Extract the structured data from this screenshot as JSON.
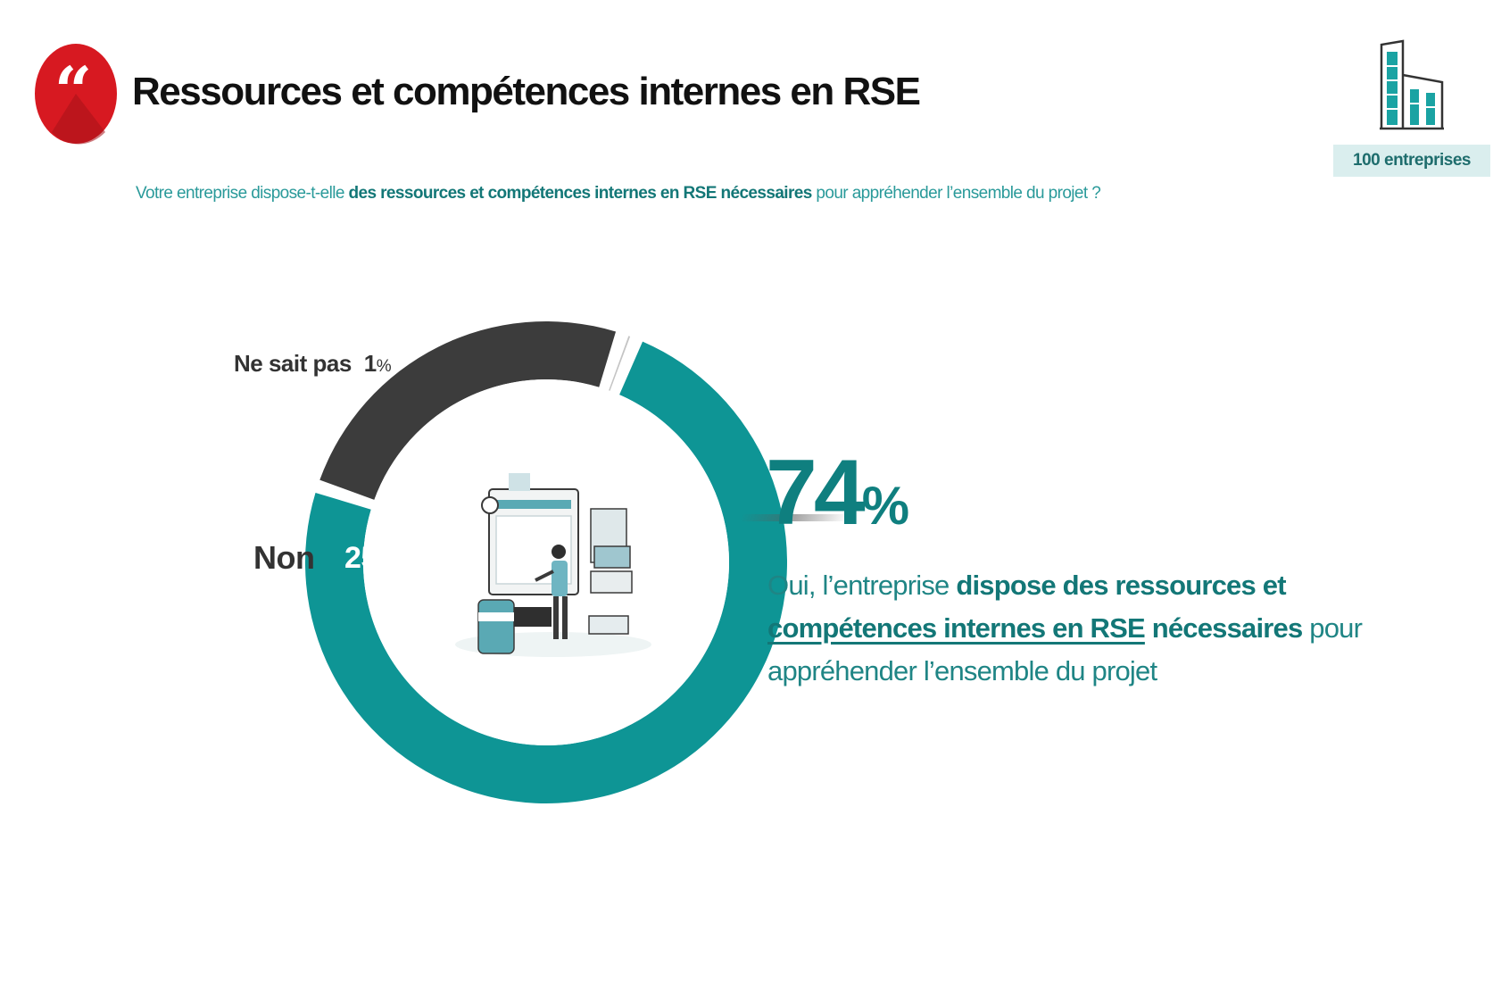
{
  "header": {
    "title": "Ressources et compétences internes en RSE",
    "badge_glyph": "“",
    "sample": "100 entreprises"
  },
  "question": {
    "prefix": "Votre entreprise dispose-t-elle ",
    "bold": "des ressources et compétences internes en RSE nécessaires",
    "suffix": " pour appréhender l’ensemble du projet ?"
  },
  "icons": {
    "header": "quote-badge-icon",
    "sample": "building-icon",
    "center": "workspace-illustration-icon"
  },
  "colors": {
    "oui": "#0e9595",
    "non": "#3c3c3c",
    "ne_sait_pas": "#c4c4c4",
    "accent_red": "#d71921"
  },
  "chart_data": {
    "type": "pie",
    "slices": [
      {
        "label": "Oui",
        "value": 74
      },
      {
        "label": "Non",
        "value": 25
      },
      {
        "label": "Ne sait pas",
        "value": 1
      }
    ]
  },
  "labels": {
    "ne_sait_pas": {
      "label": "Ne sait pas",
      "value": "1",
      "unit": "%"
    },
    "non": {
      "label": "Non",
      "value": "25%"
    },
    "oui": {
      "value": "74",
      "unit": "%",
      "text_prefix": "Oui, l’entreprise ",
      "text_bold_1": "dispose des ressources et ",
      "text_bold_underlined": "compétences internes en RSE",
      "text_bold_2": " nécessaires",
      "text_suffix": " pour appréhender l’ensemble du projet"
    }
  }
}
